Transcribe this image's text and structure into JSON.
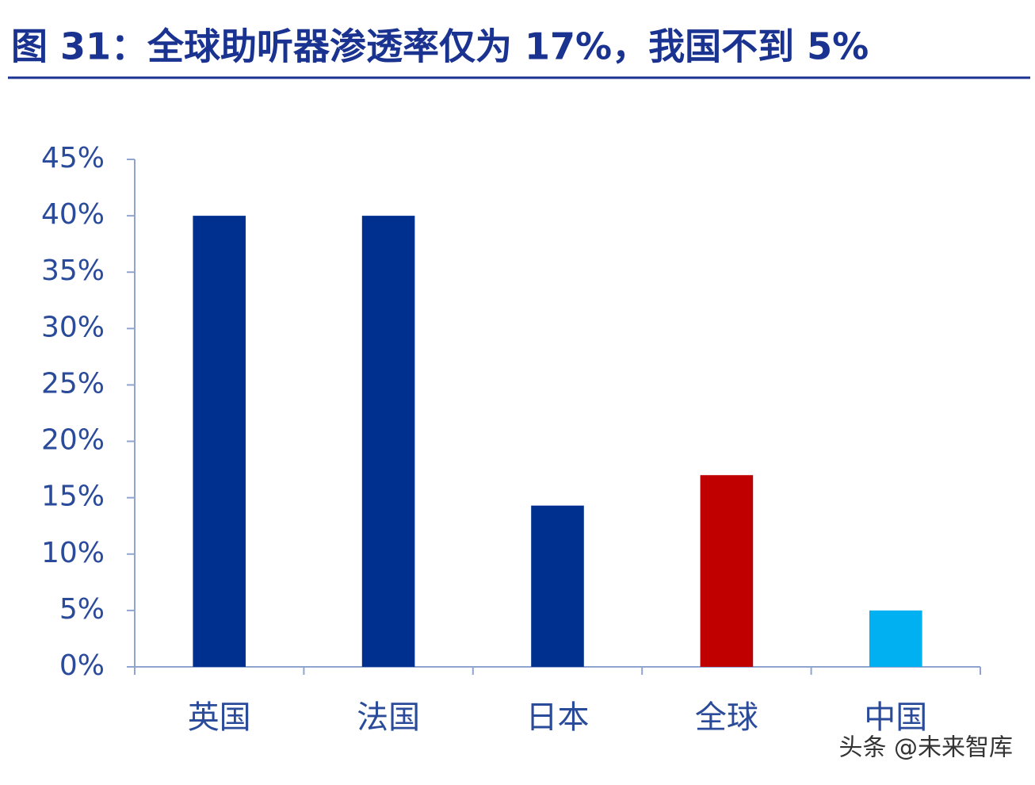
{
  "chart_data": {
    "type": "bar",
    "title": "图 31：全球助听器渗透率仅为 17%，我国不到 5%",
    "categories": [
      "英国",
      "法国",
      "日本",
      "全球",
      "中国"
    ],
    "values": [
      40,
      40,
      14.3,
      17,
      5
    ],
    "colors": [
      "#00308f",
      "#00308f",
      "#00308f",
      "#c00000",
      "#00b0f0"
    ],
    "ylim": [
      0,
      45
    ],
    "yticks": [
      {
        "value": 0,
        "label": "0%"
      },
      {
        "value": 5,
        "label": "5%"
      },
      {
        "value": 10,
        "label": "10%"
      },
      {
        "value": 15,
        "label": "15%"
      },
      {
        "value": 20,
        "label": "20%"
      },
      {
        "value": 25,
        "label": "25%"
      },
      {
        "value": 30,
        "label": "30%"
      },
      {
        "value": 35,
        "label": "35%"
      },
      {
        "value": 40,
        "label": "40%"
      },
      {
        "value": 45,
        "label": "45%"
      }
    ],
    "grid": false,
    "watermark": "头条 @未来智库"
  }
}
